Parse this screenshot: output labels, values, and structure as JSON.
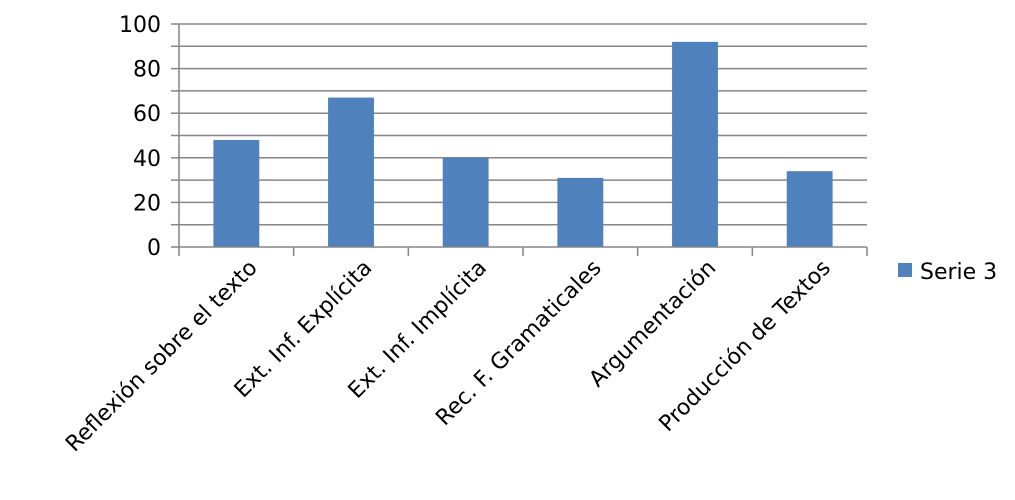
{
  "chart_data": {
    "type": "bar",
    "title": "",
    "xlabel": "",
    "ylabel": "",
    "categories": [
      "Reflexión sobre el texto",
      "Ext. Inf. Explícita",
      "Ext. Inf. Implícita",
      "Rec. F. Gramaticales",
      "Argumentación",
      "Producción de Textos"
    ],
    "series": [
      {
        "name": "Serie 3",
        "color": "#4f81bd",
        "values": [
          48,
          67,
          40,
          31,
          92,
          34
        ]
      }
    ],
    "ylim": [
      0,
      100
    ],
    "yticks": [
      0,
      20,
      40,
      60,
      80,
      100
    ],
    "minor_gridlines_step": 10,
    "grid": true,
    "legend": "right"
  }
}
